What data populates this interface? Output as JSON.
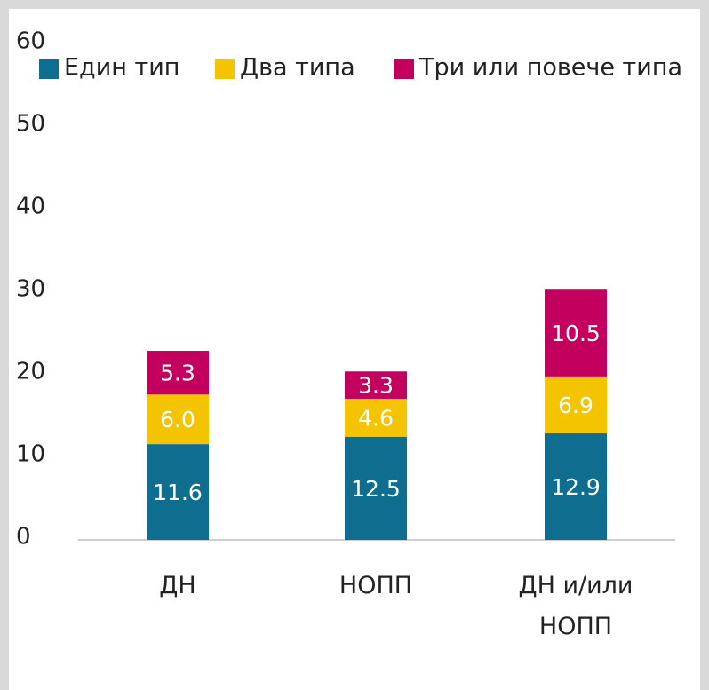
{
  "chart_data": {
    "type": "stacked_bar",
    "categories": [
      "ДН",
      "НОПП",
      "ДН и/или НОПП"
    ],
    "series": [
      {
        "name": "Един тип",
        "color": "#0f6e8f",
        "values": [
          11.6,
          12.5,
          12.9
        ],
        "value_labels": [
          "11.6",
          "12.5",
          "12.9"
        ]
      },
      {
        "name": "Два типа",
        "color": "#f5c400",
        "values": [
          6.0,
          4.6,
          6.9
        ],
        "value_labels": [
          "6.0",
          "4.6",
          "6.9"
        ]
      },
      {
        "name": "Три или повече типа",
        "color": "#c3005e",
        "values": [
          5.3,
          3.3,
          10.5
        ],
        "value_labels": [
          "5.3",
          "3.3",
          "10.5"
        ]
      }
    ],
    "ylim": [
      0,
      60
    ],
    "yticks": [
      0,
      10,
      20,
      30,
      40,
      50,
      60
    ],
    "legend": "top"
  }
}
